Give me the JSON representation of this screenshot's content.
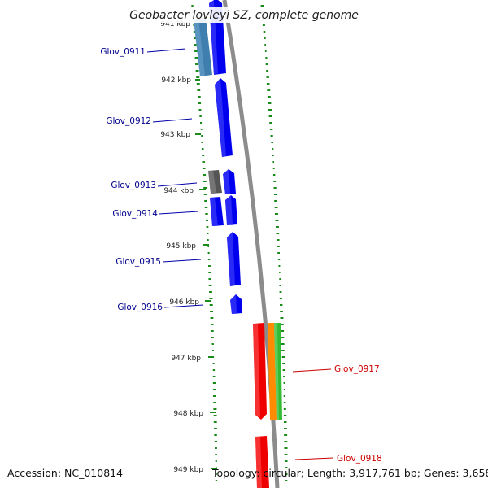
{
  "title": "Geobacter lovleyi SZ, complete genome",
  "accession": "Accession: NC_010814",
  "topology": "Topology: circular; Length: 3,917,761 bp; Genes: 3,658",
  "colors": {
    "backbone": "#8c8c8c",
    "gc_marks": "#1a8a1a",
    "forward_gene": "#0000ee",
    "light_gene": "#3f7fb0",
    "grey_gene": "#555555",
    "red_gene": "#ee0000",
    "orange_gene": "#ff8c00",
    "green_gene": "#33bb33",
    "label_blue": "#00008b",
    "label_red": "#cc0000"
  },
  "ticks": [
    {
      "label": "941 kbp",
      "kbp": 941
    },
    {
      "label": "942 kbp",
      "kbp": 942
    },
    {
      "label": "943 kbp",
      "kbp": 943
    },
    {
      "label": "944 kbp",
      "kbp": 944
    },
    {
      "label": "945 kbp",
      "kbp": 945
    },
    {
      "label": "946 kbp",
      "kbp": 946
    },
    {
      "label": "947 kbp",
      "kbp": 947
    },
    {
      "label": "948 kbp",
      "kbp": 948
    },
    {
      "label": "949 kbp",
      "kbp": 949
    }
  ],
  "genes": [
    {
      "name": "Glov_0911",
      "color": "light_gene",
      "label_color": "label_blue"
    },
    {
      "name": "Glov_0912",
      "color": "forward_gene",
      "label_color": "label_blue"
    },
    {
      "name": "Glov_0913",
      "color": "grey_gene",
      "label_color": "label_blue"
    },
    {
      "name": "Glov_0914",
      "color": "forward_gene",
      "label_color": "label_blue"
    },
    {
      "name": "Glov_0915",
      "color": "forward_gene",
      "label_color": "label_blue"
    },
    {
      "name": "Glov_0916",
      "color": "forward_gene",
      "label_color": "label_blue"
    },
    {
      "name": "Glov_0917",
      "color": "red_gene",
      "label_color": "label_red"
    },
    {
      "name": "Glov_0918",
      "color": "red_gene",
      "label_color": "label_red"
    }
  ]
}
